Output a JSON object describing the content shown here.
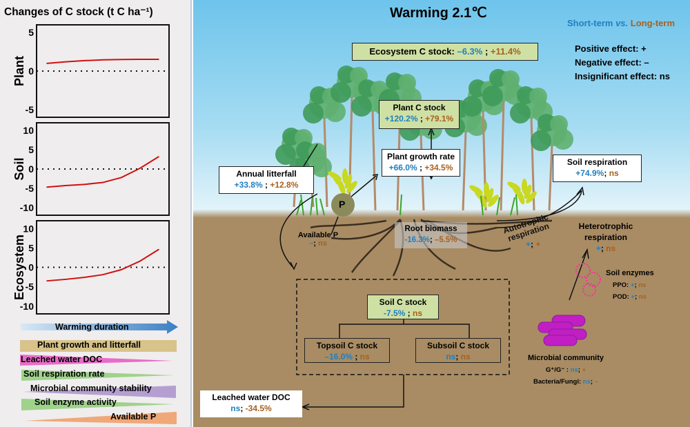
{
  "left_panel": {
    "title": "Changes of C stock (t C ha⁻¹)",
    "legend_bars": [
      {
        "label": "Warming duration",
        "color": "#4a8fd0"
      },
      {
        "label": "Plant growth and litterfall",
        "color": "#d8c38a"
      },
      {
        "label": "Leached water DOC",
        "color": "#e86cc8"
      },
      {
        "label": "Soil respiration rate",
        "color": "#9fd28a"
      },
      {
        "label": "Microbial community stability",
        "color": "#b59fd0"
      },
      {
        "label": "Soil enzyme activity",
        "color": "#9fd28a"
      },
      {
        "label": "Available P",
        "color": "#f0a878"
      }
    ]
  },
  "chart_data": [
    {
      "type": "line",
      "ylabel": "Plant",
      "ylim": [
        -6,
        6
      ],
      "yticks": [
        "5",
        "0",
        "-5"
      ],
      "reference_line": 0,
      "series": [
        {
          "values": [
            1.0,
            1.2,
            1.35,
            1.45,
            1.5,
            1.52,
            1.52
          ],
          "color": "#d01010"
        }
      ]
    },
    {
      "type": "line",
      "ylabel": "Soil",
      "ylim": [
        -12,
        12
      ],
      "yticks": [
        "10",
        "5",
        "0",
        "-5",
        "-10"
      ],
      "reference_line": 0,
      "series": [
        {
          "values": [
            -4.7,
            -4.3,
            -4.0,
            -3.5,
            -2.2,
            0.2,
            3.2
          ],
          "color": "#d01010"
        }
      ]
    },
    {
      "type": "line",
      "ylabel": "Ecosystem",
      "ylim": [
        -12,
        12
      ],
      "yticks": [
        "10",
        "5",
        "0",
        "-5",
        "-10"
      ],
      "reference_line": 0,
      "series": [
        {
          "values": [
            -3.5,
            -3.1,
            -2.6,
            -1.9,
            -0.6,
            1.6,
            4.6
          ],
          "color": "#d01010"
        }
      ]
    }
  ],
  "diagram": {
    "title": "Warming 2.1℃",
    "key": {
      "short": "Short-term",
      "vs": " vs. ",
      "long": "Long-term",
      "short_color": "#1f7fc0",
      "long_color": "#a8601c"
    },
    "effects": [
      "Positive effect: +",
      "Negative effect: –",
      "Insignificant effect: ns"
    ],
    "ecosystem": {
      "label": "Ecosystem C stock: ",
      "short": "–6.3%",
      "sep": " ; ",
      "long": "+11.4%"
    },
    "plant_c": {
      "label": "Plant C stock",
      "short": "+120.2%",
      "sep": " ; ",
      "long": "+79.1%"
    },
    "growth": {
      "label": "Plant growth rate",
      "short": "+66.0%",
      "sep": " ; ",
      "long": "+34.5%"
    },
    "litterfall": {
      "label": "Annual litterfall",
      "short": "+33.8%",
      "sep": " ; ",
      "long": "+12.8%"
    },
    "soil_resp": {
      "label": "Soil respiration",
      "short": "+74.9%",
      "sep": "; ",
      "long": "ns"
    },
    "p_symbol": "P",
    "avail_p": {
      "label": "Available P",
      "short": "–",
      "sep": "; ",
      "long": "ns"
    },
    "root": {
      "label": "Root biomass",
      "short": "-16.3%",
      "sep": "; ",
      "long": "–5.5%"
    },
    "auto": {
      "label1": "Autotrophic",
      "label2": "respiration",
      "short": "+",
      "sep": "; ",
      "long": "+"
    },
    "hetero": {
      "label1": "Heterotrophic",
      "label2": "respiration",
      "short": "+",
      "sep": "; ",
      "long": "ns"
    },
    "soil_c": {
      "label": "Soil C stock",
      "short": "-7.5%",
      "sep": " ; ",
      "long": "ns"
    },
    "topsoil": {
      "label": "Topsoil C stock",
      "short": "–16.0%",
      "sep": " ; ",
      "long": "ns"
    },
    "subsoil": {
      "label": "Subsoil C stock",
      "short": "ns",
      "sep": "; ",
      "long": "ns"
    },
    "doc": {
      "label": "Leached water DOC",
      "short": "ns",
      "sep": ";  ",
      "long": "-34.5%"
    },
    "enzymes": {
      "label": "Soil enzymes",
      "ppo": "PPO: ",
      "ppo_s": "+",
      "ppo_l": "ns",
      "pod": "POD: ",
      "pod_s": "+",
      "pod_l": "ns",
      "sep": "; "
    },
    "microbes": {
      "label": "Microbial community",
      "g": "G⁺/G⁻ : ",
      "g_s": "ns",
      "g_l": "+",
      "bf": "Bacteria/Fungi: ",
      "bf_s": "ns",
      "bf_l": "–",
      "sep": "; "
    }
  }
}
